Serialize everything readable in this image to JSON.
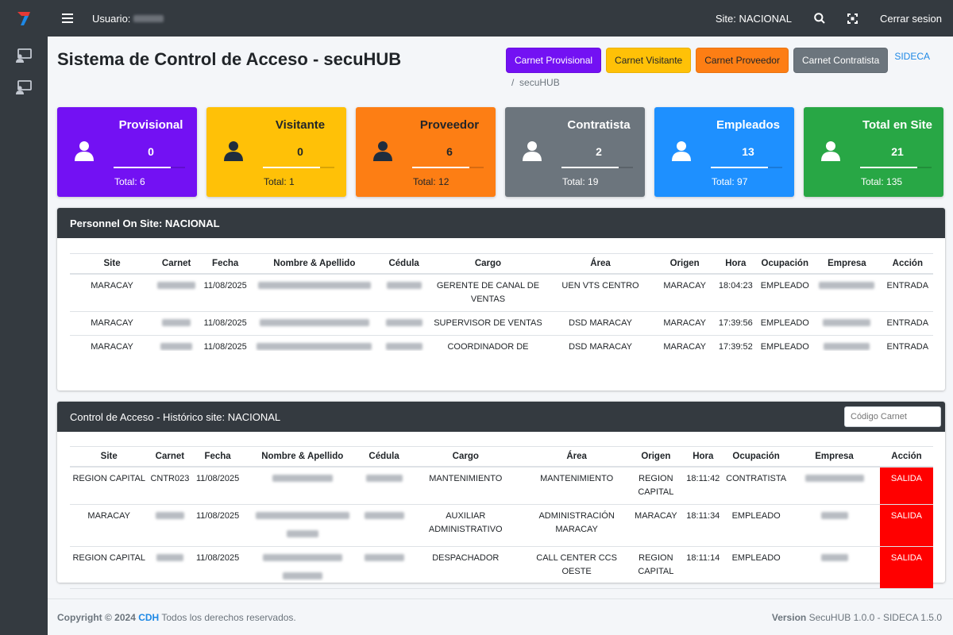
{
  "navbar": {
    "user_label": "Usuario:",
    "site_label": "Site: NACIONAL",
    "logout_label": "Cerrar sesion"
  },
  "page": {
    "title": "Sistema de Control de Acceso - secuHUB",
    "breadcrumb_sep": "/",
    "breadcrumb_current": "secuHUB"
  },
  "buttons": [
    {
      "label": "Carnet Provisional",
      "bg": "#7311f3",
      "fg": "#ffffff"
    },
    {
      "label": "Carnet Visitante",
      "bg": "#ffc107",
      "fg": "#212529"
    },
    {
      "label": "Carnet Proveedor",
      "bg": "#fd7e14",
      "fg": "#212529"
    },
    {
      "label": "Carnet Contratista",
      "bg": "#6c757d",
      "fg": "#ffffff"
    }
  ],
  "sideca_link": "SIDECA",
  "cards": [
    {
      "title": "Provisional",
      "value": "0",
      "total": "Total: 6",
      "bg": "#7311f3",
      "fg": "#ffffff",
      "icon_color": "#ffffff",
      "bar": "#ffffff"
    },
    {
      "title": "Visitante",
      "value": "0",
      "total": "Total: 1",
      "bg": "#ffc107",
      "fg": "#212529",
      "icon_color": "#1f2d3d",
      "bar": "#ffffff"
    },
    {
      "title": "Proveedor",
      "value": "6",
      "total": "Total: 12",
      "bg": "#fd7e14",
      "fg": "#212529",
      "icon_color": "#1f2d3d",
      "bar": "#ffffff"
    },
    {
      "title": "Contratista",
      "value": "2",
      "total": "Total: 19",
      "bg": "#6c757d",
      "fg": "#ffffff",
      "icon_color": "#ffffff",
      "bar": "#ffffff"
    },
    {
      "title": "Empleados",
      "value": "13",
      "total": "Total: 97",
      "bg": "#1e90ff",
      "fg": "#ffffff",
      "icon_color": "#ffffff",
      "bar": "#ffffff"
    },
    {
      "title": "Total en Site",
      "value": "21",
      "total": "Total: 135",
      "bg": "#28a745",
      "fg": "#ffffff",
      "icon_color": "#ffffff",
      "bar": "#ffffff"
    }
  ],
  "onsite": {
    "title": "Personnel On Site: NACIONAL",
    "headers": [
      "Site",
      "Carnet",
      "Fecha",
      "Nombre & Apellido",
      "Cédula",
      "Cargo",
      "Área",
      "Origen",
      "Hora",
      "Ocupación",
      "Empresa",
      "Acción"
    ],
    "rows": [
      {
        "site": "MARACAY",
        "fecha": "11/08/2025",
        "cargo": "GERENTE DE CANAL DE VENTAS",
        "area": "UEN VTS CENTRO",
        "origen": "MARACAY",
        "hora": "18:04:23",
        "ocupacion": "EMPLEADO",
        "accion": "ENTRADA"
      },
      {
        "site": "MARACAY",
        "fecha": "11/08/2025",
        "cargo": "SUPERVISOR DE VENTAS",
        "area": "DSD MARACAY",
        "origen": "MARACAY",
        "hora": "17:39:56",
        "ocupacion": "EMPLEADO",
        "accion": "ENTRADA"
      },
      {
        "site": "MARACAY",
        "fecha": "11/08/2025",
        "cargo": "COORDINADOR DE CANAL DE VENTAS",
        "area": "DSD MARACAY",
        "origen": "MARACAY",
        "hora": "17:39:52",
        "ocupacion": "EMPLEADO",
        "accion": "ENTRADA"
      }
    ]
  },
  "history": {
    "title": "Control de Acceso - Histórico site: NACIONAL",
    "search_placeholder": "Código Carnet",
    "headers": [
      "Site",
      "Carnet",
      "Fecha",
      "Nombre & Apellido",
      "Cédula",
      "Cargo",
      "Área",
      "Origen",
      "Hora",
      "Ocupación",
      "Empresa",
      "Acción"
    ],
    "rows": [
      {
        "site": "REGION CAPITAL",
        "carnet": "CNTR023",
        "fecha": "11/08/2025",
        "cargo": "MANTENIMIENTO",
        "area": "MANTENIMIENTO",
        "origen": "REGION CAPITAL",
        "hora": "18:11:42",
        "ocupacion": "CONTRATISTA",
        "accion": "SALIDA"
      },
      {
        "site": "MARACAY",
        "carnet": "",
        "fecha": "11/08/2025",
        "cargo": "AUXILIAR ADMINISTRATIVO",
        "area": "ADMINISTRACIÓN MARACAY",
        "origen": "MARACAY",
        "hora": "18:11:34",
        "ocupacion": "EMPLEADO",
        "accion": "SALIDA"
      },
      {
        "site": "REGION CAPITAL",
        "carnet": "",
        "fecha": "11/08/2025",
        "cargo": "DESPACHADOR",
        "area": "CALL CENTER CCS OESTE",
        "origen": "REGION CAPITAL",
        "hora": "18:11:14",
        "ocupacion": "EMPLEADO",
        "accion": "SALIDA"
      }
    ]
  },
  "footer": {
    "copyright": "Copyright © 2024",
    "brand": "CDH",
    "rights": "Todos los derechos reservados.",
    "version_label": "Version",
    "version_text": "SecuHUB 1.0.0 - SIDECA 1.5.0"
  }
}
